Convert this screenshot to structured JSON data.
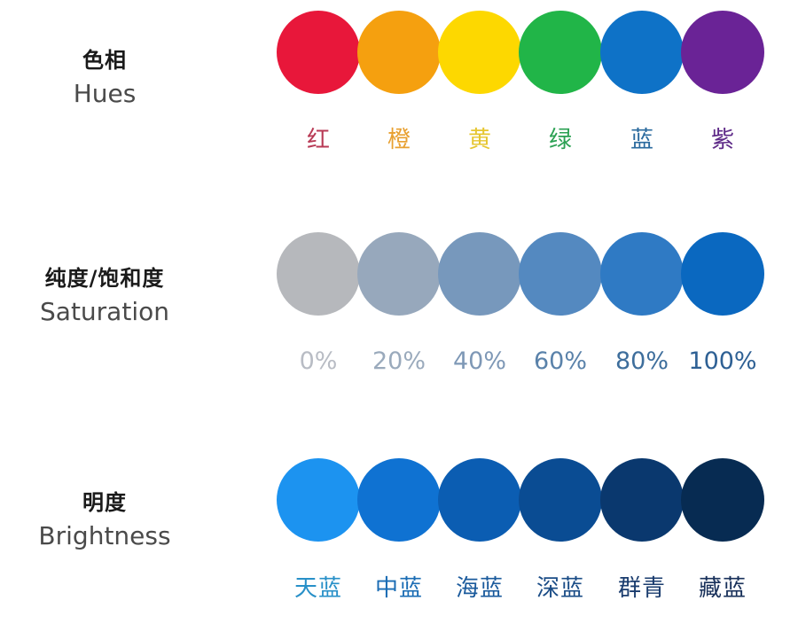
{
  "hues": {
    "title_zh": "色相",
    "title_en": "Hues",
    "swatches": [
      {
        "label": "红",
        "color": "#e8173a",
        "label_color": "#b83a55"
      },
      {
        "label": "橙",
        "color": "#f5a00f",
        "label_color": "#e8a030"
      },
      {
        "label": "黄",
        "color": "#fdd800",
        "label_color": "#e6c630"
      },
      {
        "label": "绿",
        "color": "#21b548",
        "label_color": "#2aa052"
      },
      {
        "label": "蓝",
        "color": "#0e72c7",
        "label_color": "#2a6a9e"
      },
      {
        "label": "紫",
        "color": "#6a2396",
        "label_color": "#5e2a88"
      }
    ]
  },
  "saturation": {
    "title_zh": "纯度/饱和度",
    "title_en": "Saturation",
    "swatches": [
      {
        "label": "0%",
        "color": "#b6b8bc",
        "label_color": "#b8bcc4"
      },
      {
        "label": "20%",
        "color": "#97a8bc",
        "label_color": "#9aaabc"
      },
      {
        "label": "40%",
        "color": "#7798bc",
        "label_color": "#7e98b6"
      },
      {
        "label": "60%",
        "color": "#5489c0",
        "label_color": "#5a82aa"
      },
      {
        "label": "80%",
        "color": "#2f7ac4",
        "label_color": "#3e6e9c"
      },
      {
        "label": "100%",
        "color": "#0a68c0",
        "label_color": "#2e6094"
      }
    ]
  },
  "brightness": {
    "title_zh": "明度",
    "title_en": "Brightness",
    "swatches": [
      {
        "label": "天蓝",
        "color": "#1c93f0",
        "label_color": "#2890c8"
      },
      {
        "label": "中蓝",
        "color": "#0f72d2",
        "label_color": "#1a6cb4"
      },
      {
        "label": "海蓝",
        "color": "#0b5db2",
        "label_color": "#1a5a9c"
      },
      {
        "label": "深蓝",
        "color": "#0a4c93",
        "label_color": "#1a4c86"
      },
      {
        "label": "群青",
        "color": "#0a386e",
        "label_color": "#1a3c6e"
      },
      {
        "label": "藏蓝",
        "color": "#072b52",
        "label_color": "#18305a"
      }
    ]
  }
}
